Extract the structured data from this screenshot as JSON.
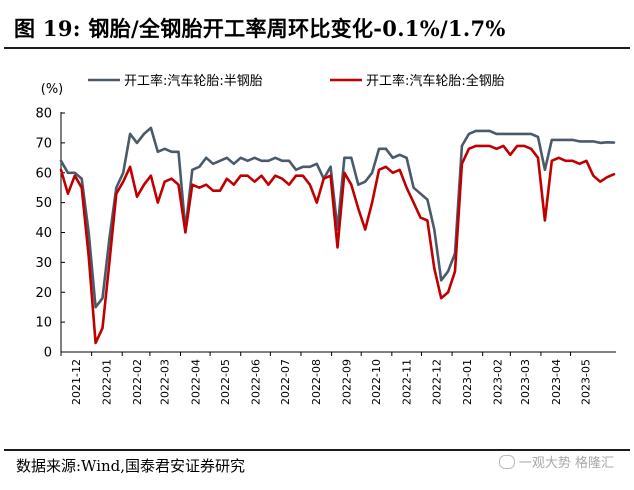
{
  "title": "图 19:  钢胎/全钢胎开工率周环比变化-0.1%/1.7%",
  "source": "数据来源:Wind,国泰君安证券研究",
  "watermark": "一观大势 格隆汇",
  "colors": {
    "series_semi_steel": "#4a5a6a",
    "series_all_steel": "#c00000",
    "rule": "#1c1c1c",
    "axis": "#000000"
  },
  "chart_data": {
    "type": "line",
    "ylabel": "(%)",
    "ylim": [
      0,
      80
    ],
    "yticks": [
      0,
      10,
      20,
      30,
      40,
      50,
      60,
      70,
      80
    ],
    "grid": false,
    "legend_position": "top",
    "x_start": "2021-12",
    "x_end": "2023-06-16",
    "x_tick_labels": [
      "2021-12",
      "2022-01",
      "2022-02",
      "2022-03",
      "2022-04",
      "2022-05",
      "2022-06",
      "2022-07",
      "2022-08",
      "2022-09",
      "2022-10",
      "2022-11",
      "2022-12",
      "2023-01",
      "2023-02",
      "2023-03",
      "2023-04",
      "2023-05"
    ],
    "series": [
      {
        "name": "开工率:汽车轮胎:半钢胎",
        "color": "#4a5a6a",
        "x": [
          "2021-12-01",
          "2021-12-08",
          "2021-12-15",
          "2021-12-22",
          "2021-12-29",
          "2022-01-05",
          "2022-01-12",
          "2022-01-19",
          "2022-01-26",
          "2022-02-02",
          "2022-02-09",
          "2022-02-16",
          "2022-02-23",
          "2022-03-02",
          "2022-03-09",
          "2022-03-16",
          "2022-03-23",
          "2022-03-30",
          "2022-04-06",
          "2022-04-13",
          "2022-04-20",
          "2022-04-27",
          "2022-05-04",
          "2022-05-11",
          "2022-05-18",
          "2022-05-25",
          "2022-06-01",
          "2022-06-08",
          "2022-06-15",
          "2022-06-22",
          "2022-06-29",
          "2022-07-06",
          "2022-07-13",
          "2022-07-20",
          "2022-07-27",
          "2022-08-03",
          "2022-08-10",
          "2022-08-17",
          "2022-08-24",
          "2022-08-31",
          "2022-09-07",
          "2022-09-14",
          "2022-09-21",
          "2022-09-28",
          "2022-10-05",
          "2022-10-12",
          "2022-10-19",
          "2022-10-26",
          "2022-11-02",
          "2022-11-09",
          "2022-11-16",
          "2022-11-23",
          "2022-11-30",
          "2022-12-07",
          "2022-12-14",
          "2022-12-21",
          "2022-12-28",
          "2023-01-04",
          "2023-01-11",
          "2023-01-18",
          "2023-01-25",
          "2023-02-01",
          "2023-02-08",
          "2023-02-15",
          "2023-02-22",
          "2023-03-01",
          "2023-03-08",
          "2023-03-15",
          "2023-03-22",
          "2023-03-29",
          "2023-04-05",
          "2023-04-12",
          "2023-04-19",
          "2023-04-26",
          "2023-05-03",
          "2023-05-10",
          "2023-05-17",
          "2023-05-24",
          "2023-05-31",
          "2023-06-07",
          "2023-06-14"
        ],
        "values": [
          64.0,
          60.0,
          60.0,
          58.0,
          40.0,
          15.0,
          18.0,
          38.0,
          55.0,
          60.0,
          73.0,
          70.0,
          73.0,
          75.0,
          67.0,
          68.0,
          67.0,
          67.0,
          41.0,
          61.0,
          62.0,
          65.0,
          63.0,
          64.0,
          65.0,
          63.0,
          65.0,
          64.0,
          65.0,
          64.0,
          64.0,
          65.0,
          64.0,
          64.0,
          61.0,
          62.0,
          62.0,
          63.0,
          58.0,
          62.0,
          41.0,
          65.0,
          65.0,
          56.0,
          57.0,
          60.0,
          68.0,
          68.0,
          65.0,
          66.0,
          65.0,
          55.0,
          53.0,
          51.0,
          41.0,
          24.0,
          27.0,
          33.0,
          69.0,
          73.0,
          74.0,
          74.0,
          74.0,
          73.0,
          73.0,
          73.0,
          73.0,
          73.0,
          73.0,
          72.0,
          61.0,
          71.0,
          71.0,
          71.0,
          71.0,
          70.5,
          70.5,
          70.5,
          70.0,
          70.2,
          70.1
        ]
      },
      {
        "name": "开工率:汽车轮胎:全钢胎",
        "color": "#c00000",
        "x": [
          "2021-12-01",
          "2021-12-08",
          "2021-12-15",
          "2021-12-22",
          "2021-12-29",
          "2022-01-05",
          "2022-01-12",
          "2022-01-19",
          "2022-01-26",
          "2022-02-02",
          "2022-02-09",
          "2022-02-16",
          "2022-02-23",
          "2022-03-02",
          "2022-03-09",
          "2022-03-16",
          "2022-03-23",
          "2022-03-30",
          "2022-04-06",
          "2022-04-13",
          "2022-04-20",
          "2022-04-27",
          "2022-05-04",
          "2022-05-11",
          "2022-05-18",
          "2022-05-25",
          "2022-06-01",
          "2022-06-08",
          "2022-06-15",
          "2022-06-22",
          "2022-06-29",
          "2022-07-06",
          "2022-07-13",
          "2022-07-20",
          "2022-07-27",
          "2022-08-03",
          "2022-08-10",
          "2022-08-17",
          "2022-08-24",
          "2022-08-31",
          "2022-09-07",
          "2022-09-14",
          "2022-09-21",
          "2022-09-28",
          "2022-10-05",
          "2022-10-12",
          "2022-10-19",
          "2022-10-26",
          "2022-11-02",
          "2022-11-09",
          "2022-11-16",
          "2022-11-23",
          "2022-11-30",
          "2022-12-07",
          "2022-12-14",
          "2022-12-21",
          "2022-12-28",
          "2023-01-04",
          "2023-01-11",
          "2023-01-18",
          "2023-01-25",
          "2023-02-01",
          "2023-02-08",
          "2023-02-15",
          "2023-02-22",
          "2023-03-01",
          "2023-03-08",
          "2023-03-15",
          "2023-03-22",
          "2023-03-29",
          "2023-04-05",
          "2023-04-12",
          "2023-04-19",
          "2023-04-26",
          "2023-05-03",
          "2023-05-10",
          "2023-05-17",
          "2023-05-24",
          "2023-05-31",
          "2023-06-07",
          "2023-06-14"
        ],
        "values": [
          61.0,
          53.0,
          59.0,
          55.0,
          32.0,
          3.0,
          8.0,
          30.0,
          53.0,
          57.0,
          62.0,
          52.0,
          56.0,
          59.0,
          50.0,
          57.0,
          58.0,
          56.0,
          40.0,
          56.0,
          55.0,
          56.0,
          54.0,
          54.0,
          58.0,
          56.0,
          59.0,
          59.0,
          57.0,
          59.0,
          56.0,
          59.0,
          58.0,
          56.0,
          59.0,
          59.0,
          56.0,
          50.0,
          58.0,
          59.0,
          35.0,
          60.0,
          56.0,
          48.0,
          41.0,
          50.0,
          61.0,
          62.0,
          60.0,
          61.0,
          55.0,
          50.0,
          45.0,
          44.0,
          28.0,
          18.0,
          20.0,
          27.0,
          63.0,
          68.0,
          69.0,
          69.0,
          69.0,
          68.0,
          69.0,
          66.0,
          69.0,
          69.0,
          68.0,
          65.0,
          44.0,
          64.0,
          65.0,
          64.0,
          64.0,
          63.0,
          64.0,
          59.0,
          57.0,
          58.5,
          59.5
        ]
      }
    ]
  }
}
